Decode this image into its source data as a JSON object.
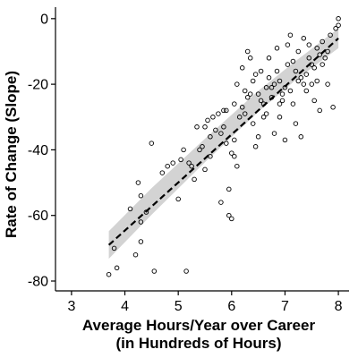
{
  "chart_data": {
    "type": "scatter",
    "title": "",
    "xlabel_lines": [
      "Average Hours/Year over Career",
      "(in Hundreds of Hours)"
    ],
    "ylabel": "Rate of Change (Slope)",
    "xlim": [
      2.7,
      8.2
    ],
    "ylim": [
      -83,
      3.5
    ],
    "xticks": [
      3,
      4,
      5,
      6,
      7,
      8
    ],
    "yticks": [
      0,
      -20,
      -40,
      -60,
      -80
    ],
    "grid": false,
    "legend": "none",
    "colors": {
      "points": "#000000",
      "trend_line": "#000000",
      "confidence_band": "#d3d3d3"
    },
    "trend_line": {
      "style": "dashed",
      "points": [
        [
          3.7,
          -69
        ],
        [
          8.0,
          -6
        ]
      ]
    },
    "confidence_band": {
      "upper": [
        [
          3.7,
          -64.8
        ],
        [
          4.5,
          -51.7
        ],
        [
          5.5,
          -36.6
        ],
        [
          6.5,
          -22.0
        ],
        [
          7.2,
          -12.9
        ],
        [
          8.0,
          -3.0
        ]
      ],
      "lower": [
        [
          3.7,
          -73.2
        ],
        [
          4.5,
          -59.8
        ],
        [
          5.5,
          -43.8
        ],
        [
          6.5,
          -28.4
        ],
        [
          7.2,
          -18.7
        ],
        [
          8.0,
          -9.0
        ]
      ]
    },
    "points": [
      [
        3.7,
        -78
      ],
      [
        3.8,
        -70
      ],
      [
        3.85,
        -76
      ],
      [
        4.1,
        -58
      ],
      [
        4.2,
        -72
      ],
      [
        4.25,
        -50
      ],
      [
        4.3,
        -62
      ],
      [
        4.3,
        -68
      ],
      [
        4.3,
        -54
      ],
      [
        4.4,
        -59
      ],
      [
        4.5,
        -38
      ],
      [
        4.55,
        -77
      ],
      [
        4.7,
        -47
      ],
      [
        4.8,
        -45
      ],
      [
        4.9,
        -44
      ],
      [
        5.0,
        -55
      ],
      [
        5.05,
        -43
      ],
      [
        5.1,
        -40
      ],
      [
        5.15,
        -77
      ],
      [
        5.2,
        -44
      ],
      [
        5.3,
        -49
      ],
      [
        5.35,
        -33
      ],
      [
        5.4,
        -40
      ],
      [
        5.45,
        -39
      ],
      [
        5.5,
        -33
      ],
      [
        5.5,
        -46
      ],
      [
        5.55,
        -31
      ],
      [
        5.6,
        -36
      ],
      [
        5.65,
        -30
      ],
      [
        5.7,
        -34
      ],
      [
        5.75,
        -29
      ],
      [
        5.8,
        -35
      ],
      [
        5.8,
        -56
      ],
      [
        5.85,
        -33
      ],
      [
        5.9,
        -28
      ],
      [
        5.9,
        -38
      ],
      [
        5.95,
        -52
      ],
      [
        5.95,
        -60
      ],
      [
        6.0,
        -61
      ],
      [
        6.0,
        -41
      ],
      [
        6.05,
        -42
      ],
      [
        6.05,
        -37
      ],
      [
        6.1,
        -20
      ],
      [
        6.1,
        -45
      ],
      [
        6.15,
        -30
      ],
      [
        6.2,
        -27
      ],
      [
        6.25,
        -22
      ],
      [
        6.3,
        -10
      ],
      [
        6.3,
        -24
      ],
      [
        6.35,
        -12
      ],
      [
        6.4,
        -32
      ],
      [
        6.4,
        -19
      ],
      [
        6.45,
        -39
      ],
      [
        6.5,
        -36
      ],
      [
        6.5,
        -23
      ],
      [
        6.55,
        -16
      ],
      [
        6.6,
        -26
      ],
      [
        6.6,
        -30
      ],
      [
        6.65,
        -21
      ],
      [
        6.7,
        -18
      ],
      [
        6.7,
        -12
      ],
      [
        6.75,
        -24
      ],
      [
        6.8,
        -35
      ],
      [
        6.8,
        -20
      ],
      [
        6.85,
        -9
      ],
      [
        6.9,
        -19
      ],
      [
        6.9,
        -30
      ],
      [
        6.95,
        -25
      ],
      [
        7.0,
        -21
      ],
      [
        7.0,
        -37
      ],
      [
        7.05,
        -14
      ],
      [
        7.05,
        -8
      ],
      [
        7.1,
        -22
      ],
      [
        7.1,
        -5
      ],
      [
        7.15,
        -26
      ],
      [
        7.2,
        -16
      ],
      [
        7.2,
        -32
      ],
      [
        7.25,
        -10
      ],
      [
        7.3,
        -18
      ],
      [
        7.3,
        -36
      ],
      [
        7.35,
        -6
      ],
      [
        7.4,
        -22
      ],
      [
        7.45,
        -12
      ],
      [
        7.5,
        -20
      ],
      [
        7.5,
        -14
      ],
      [
        7.55,
        -25
      ],
      [
        7.6,
        -19
      ],
      [
        7.6,
        -9
      ],
      [
        7.65,
        -28
      ],
      [
        7.7,
        -14
      ],
      [
        7.7,
        -7
      ],
      [
        7.8,
        -10
      ],
      [
        7.8,
        -20
      ],
      [
        7.85,
        -5
      ],
      [
        7.9,
        -27
      ],
      [
        7.95,
        -3
      ],
      [
        8.0,
        0
      ],
      [
        8.0,
        -2
      ],
      [
        6.2,
        -15
      ],
      [
        6.45,
        -17
      ],
      [
        6.55,
        -25
      ],
      [
        6.75,
        -21
      ],
      [
        6.95,
        -23
      ],
      [
        7.15,
        -13
      ],
      [
        7.35,
        -20
      ],
      [
        7.55,
        -15
      ],
      [
        7.65,
        -11
      ],
      [
        6.35,
        -23
      ],
      [
        6.05,
        -26
      ],
      [
        5.85,
        -28
      ],
      [
        6.65,
        -29
      ],
      [
        6.85,
        -16
      ],
      [
        7.25,
        -19
      ],
      [
        7.45,
        -8
      ],
      [
        7.75,
        -12
      ],
      [
        5.6,
        -42
      ],
      [
        5.25,
        -45
      ],
      [
        6.25,
        -29
      ],
      [
        6.9,
        -26
      ],
      [
        7.4,
        -17
      ]
    ]
  }
}
